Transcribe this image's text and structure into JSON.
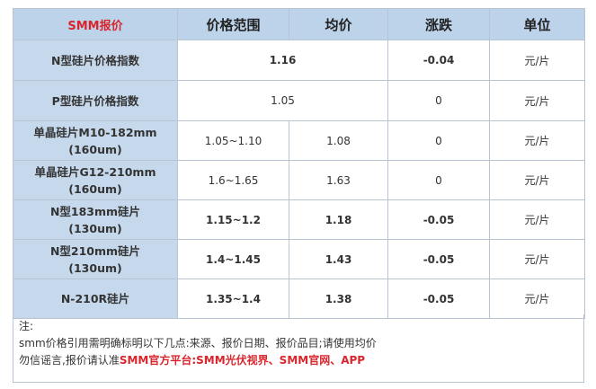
{
  "header": {
    "brand": "SMM报价",
    "price_range": "价格范围",
    "avg": "均价",
    "change": "涨跌",
    "unit": "单位"
  },
  "rows": [
    {
      "label": "N型硅片价格指数",
      "range": "1.16",
      "avg": "",
      "change": "-0.04",
      "unit": "元/片",
      "highlight": true,
      "merged": true
    },
    {
      "label": "P型硅片价格指数",
      "range": "1.05",
      "avg": "",
      "change": "0",
      "unit": "元/片",
      "highlight": false,
      "merged": true
    },
    {
      "label_line1": "单晶硅片M10-182mm",
      "label_line2": "(160um)",
      "range": "1.05~1.10",
      "avg": "1.08",
      "change": "0",
      "unit": "元/片",
      "highlight": false
    },
    {
      "label_line1": "单晶硅片G12-210mm",
      "label_line2": "(160um)",
      "range": "1.6~1.65",
      "avg": "1.63",
      "change": "0",
      "unit": "元/片",
      "highlight": false
    },
    {
      "label_line1": "N型183mm硅片",
      "label_line2": "(130um)",
      "range": "1.15~1.2",
      "avg": "1.18",
      "change": "-0.05",
      "unit": "元/片",
      "highlight": true
    },
    {
      "label_line1": "N型210mm硅片",
      "label_line2": "(130um)",
      "range": "1.4~1.45",
      "avg": "1.43",
      "change": "-0.05",
      "unit": "元/片",
      "highlight": true
    },
    {
      "label": "N-210R硅片",
      "range": "1.35~1.4",
      "avg": "1.38",
      "change": "-0.05",
      "unit": "元/片",
      "highlight": true
    }
  ],
  "notes": {
    "line1": "注:",
    "line2": "smm价格引用需明确标明以下几点:来源、报价日期、报价品目;请使用均价",
    "line3_prefix": "勿信谣言,报价请认准",
    "line3_red": "SMM官方平台:SMM光伏视界、SMM官网、APP"
  },
  "colors": {
    "header_bg": "#bcd3ea",
    "label_bg": "#c6d9ec",
    "brand_red": "#d9262d",
    "green": "#16a36a"
  }
}
